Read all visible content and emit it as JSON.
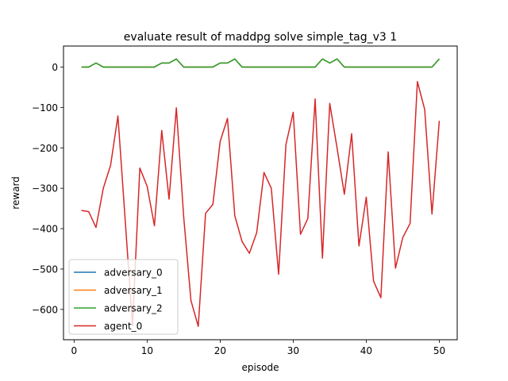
{
  "chart_data": {
    "type": "line",
    "title": "evaluate result of maddpg solve simple_tag_v3 1",
    "xlabel": "episode",
    "ylabel": "reward",
    "xlim": [
      -1.45,
      52.45
    ],
    "ylim": [
      -675,
      52
    ],
    "xticks": [
      0,
      10,
      20,
      30,
      40,
      50
    ],
    "yticks": [
      0,
      -100,
      -200,
      -300,
      -400,
      -500,
      -600
    ],
    "grid": false,
    "legend_position": "lower-left",
    "x": [
      1,
      2,
      3,
      4,
      5,
      6,
      7,
      8,
      9,
      10,
      11,
      12,
      13,
      14,
      15,
      16,
      17,
      18,
      19,
      20,
      21,
      22,
      23,
      24,
      25,
      26,
      27,
      28,
      29,
      30,
      31,
      32,
      33,
      34,
      35,
      36,
      37,
      38,
      39,
      40,
      41,
      42,
      43,
      44,
      45,
      46,
      47,
      48,
      49,
      50
    ],
    "series": [
      {
        "name": "adversary_0",
        "color": "#1f77b4",
        "values": [
          0,
          0,
          10,
          0,
          0,
          0,
          0,
          0,
          0,
          0,
          0,
          10,
          10,
          20,
          0,
          0,
          0,
          0,
          0,
          10,
          10,
          20,
          0,
          0,
          0,
          0,
          0,
          0,
          0,
          0,
          0,
          0,
          0,
          20,
          10,
          20,
          0,
          0,
          0,
          0,
          0,
          0,
          0,
          0,
          0,
          0,
          0,
          0,
          0,
          20
        ]
      },
      {
        "name": "adversary_1",
        "color": "#ff7f0e",
        "values": [
          0,
          0,
          10,
          0,
          0,
          0,
          0,
          0,
          0,
          0,
          0,
          10,
          10,
          20,
          0,
          0,
          0,
          0,
          0,
          10,
          10,
          20,
          0,
          0,
          0,
          0,
          0,
          0,
          0,
          0,
          0,
          0,
          0,
          20,
          10,
          20,
          0,
          0,
          0,
          0,
          0,
          0,
          0,
          0,
          0,
          0,
          0,
          0,
          0,
          20
        ]
      },
      {
        "name": "adversary_2",
        "color": "#2ca02c",
        "values": [
          0,
          0,
          10,
          0,
          0,
          0,
          0,
          0,
          0,
          0,
          0,
          10,
          10,
          20,
          0,
          0,
          0,
          0,
          0,
          10,
          10,
          20,
          0,
          0,
          0,
          0,
          0,
          0,
          0,
          0,
          0,
          0,
          0,
          20,
          10,
          20,
          0,
          0,
          0,
          0,
          0,
          0,
          0,
          0,
          0,
          0,
          0,
          0,
          0,
          20
        ]
      },
      {
        "name": "agent_0",
        "color": "#d62728",
        "values": [
          -355,
          -358,
          -397,
          -300,
          -243,
          -121,
          -380,
          -640,
          -250,
          -295,
          -393,
          -157,
          -327,
          -101,
          -370,
          -578,
          -642,
          -362,
          -340,
          -184,
          -127,
          -368,
          -432,
          -461,
          -410,
          -261,
          -300,
          -513,
          -192,
          -112,
          -414,
          -375,
          -79,
          -473,
          -90,
          -200,
          -315,
          -165,
          -443,
          -322,
          -530,
          -571,
          -210,
          -498,
          -422,
          -387,
          -36,
          -105,
          -364,
          -133
        ]
      }
    ]
  }
}
